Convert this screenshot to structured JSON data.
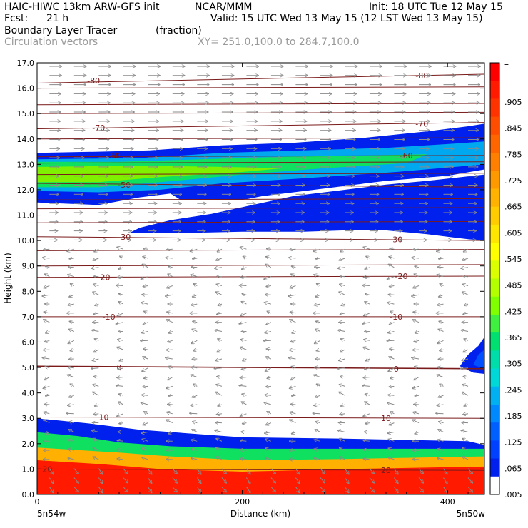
{
  "header": {
    "model": "HAIC-HIWC 13km ARW-GFS init",
    "org": "NCAR/MMM",
    "init": "Init: 18 UTC Tue 12 May 15",
    "fcst_label": "Fcst:",
    "fcst_value": "21 h",
    "valid": "Valid: 15 UTC Wed 13 May 15 (12 LST Wed 13 May 15)",
    "field": "Boundary Layer Tracer",
    "field_units": "(fraction)",
    "overlay": "Circulation vectors",
    "xy": "XY= 251.0,100.0 to 284.7,100.0"
  },
  "colorbar": {
    "top_label": "–",
    "labels": [
      ".905",
      ".845",
      ".785",
      ".725",
      ".665",
      ".605",
      ".545",
      ".485",
      ".425",
      ".365",
      ".305",
      ".245",
      ".185",
      ".125",
      ".065",
      ".005"
    ],
    "colors": [
      "#ff0000",
      "#ff1a00",
      "#ff3300",
      "#ff4d00",
      "#ff6600",
      "#ff8000",
      "#ff9900",
      "#ffb300",
      "#ffcc00",
      "#ffe600",
      "#ffff00",
      "#d9ff00",
      "#b3ff00",
      "#80ff00",
      "#40f040",
      "#00e070",
      "#00ddaa",
      "#00d8d8",
      "#00b0f0",
      "#0088ff",
      "#0060ff",
      "#0040ff",
      "#0020ee",
      "#ffffff"
    ]
  },
  "chart_data": {
    "type": "heatmap",
    "xlabel": "Distance (km)",
    "ylabel": "Height (km)",
    "xlim": [
      0,
      436
    ],
    "ylim": [
      0,
      17
    ],
    "x_ticks": [
      "0",
      "200",
      "400"
    ],
    "y_ticks": [
      "0.0",
      "1.0",
      "2.0",
      "3.0",
      "4.0",
      "5.0",
      "6.0",
      "7.0",
      "8.0",
      "9.0",
      "10.0",
      "11.0",
      "12.0",
      "13.0",
      "14.0",
      "15.0",
      "16.0",
      "17.0"
    ],
    "x_end_labels": {
      "left": "5n54w",
      "right": "5n50w"
    },
    "isotherms": [
      {
        "label": "-80",
        "y0": 16.2,
        "y1": 16.55,
        "label_at": [
          [
            55,
            16.3
          ],
          [
            375,
            16.5
          ]
        ]
      },
      {
        "label": "-70",
        "y0": 14.4,
        "y1": 14.65,
        "label_at": [
          [
            60,
            14.45
          ],
          [
            375,
            14.6
          ]
        ]
      },
      {
        "label": "-60",
        "y0": 13.3,
        "y1": 13.35,
        "label_at": [
          [
            75,
            13.35
          ],
          [
            360,
            13.35
          ]
        ]
      },
      {
        "label": "-50",
        "y0": 12.25,
        "y1": 12.1,
        "label_at": [
          [
            85,
            12.2
          ]
        ]
      },
      {
        "label": "-30",
        "y0": 10.15,
        "y1": 10.0,
        "label_at": [
          [
            85,
            10.15
          ],
          [
            350,
            10.05
          ]
        ]
      },
      {
        "label": "-20",
        "y0": 8.55,
        "y1": 8.6,
        "label_at": [
          [
            65,
            8.55
          ],
          [
            355,
            8.6
          ]
        ]
      },
      {
        "label": "-10",
        "y0": 7.0,
        "y1": 7.0,
        "label_at": [
          [
            70,
            7.0
          ],
          [
            350,
            7.0
          ]
        ]
      },
      {
        "label": "0",
        "y0": 5.05,
        "y1": 4.95,
        "label_at": [
          [
            80,
            5.0
          ],
          [
            350,
            4.95
          ]
        ]
      },
      {
        "label": "10",
        "y0": 3.05,
        "y1": 3.0,
        "label_at": [
          [
            65,
            3.05
          ],
          [
            340,
            3.0
          ]
        ]
      },
      {
        "label": "20",
        "y0": 1.0,
        "y1": 0.95,
        "label_at": [
          [
            10,
            1.0
          ],
          [
            340,
            0.95
          ]
        ]
      }
    ],
    "isotherms_unlabeled_y": [
      16.0,
      15.35,
      15.0,
      14.0,
      13.05,
      12.6,
      11.6,
      11.25,
      10.7,
      9.6,
      9.0
    ],
    "tracer_fraction": [
      {
        "level": 0.005,
        "polygon": [
          [
            0,
            0
          ],
          [
            436,
            0
          ],
          [
            436,
            1.95
          ],
          [
            420,
            2.1
          ],
          [
            300,
            2.2
          ],
          [
            200,
            2.25
          ],
          [
            150,
            2.4
          ],
          [
            100,
            2.55
          ],
          [
            50,
            2.8
          ],
          [
            0,
            3.0
          ]
        ]
      },
      {
        "level": 0.245,
        "polygon": [
          [
            0,
            0
          ],
          [
            436,
            0
          ],
          [
            436,
            1.8
          ],
          [
            300,
            1.8
          ],
          [
            200,
            1.8
          ],
          [
            130,
            1.9
          ],
          [
            80,
            2.05
          ],
          [
            40,
            2.3
          ],
          [
            0,
            2.45
          ]
        ]
      },
      {
        "level": 0.545,
        "polygon": [
          [
            0,
            0
          ],
          [
            436,
            0
          ],
          [
            436,
            1.5
          ],
          [
            300,
            1.4
          ],
          [
            200,
            1.35
          ],
          [
            130,
            1.5
          ],
          [
            80,
            1.65
          ],
          [
            0,
            1.85
          ]
        ]
      },
      {
        "level": 0.845,
        "polygon": [
          [
            0,
            0
          ],
          [
            436,
            0
          ],
          [
            436,
            1.1
          ],
          [
            300,
            1.0
          ],
          [
            200,
            0.9
          ],
          [
            120,
            1.0
          ],
          [
            60,
            1.2
          ],
          [
            0,
            1.35
          ]
        ]
      },
      {
        "level": 0.005,
        "polygon": [
          [
            0,
            13.45
          ],
          [
            60,
            13.5
          ],
          [
            110,
            13.55
          ],
          [
            180,
            13.75
          ],
          [
            250,
            13.85
          ],
          [
            320,
            14.05
          ],
          [
            380,
            14.3
          ],
          [
            420,
            14.5
          ],
          [
            436,
            14.6
          ],
          [
            436,
            10.0
          ],
          [
            420,
            10.05
          ],
          [
            380,
            10.25
          ],
          [
            340,
            10.4
          ],
          [
            300,
            10.4
          ],
          [
            260,
            10.35
          ],
          [
            200,
            10.35
          ],
          [
            150,
            10.3
          ],
          [
            90,
            10.3
          ],
          [
            100,
            10.5
          ],
          [
            130,
            10.8
          ],
          [
            170,
            11.05
          ],
          [
            210,
            11.4
          ],
          [
            250,
            11.75
          ],
          [
            290,
            11.95
          ],
          [
            340,
            12.2
          ],
          [
            380,
            12.35
          ],
          [
            436,
            12.6
          ],
          [
            436,
            12.8
          ],
          [
            400,
            12.55
          ],
          [
            340,
            12.35
          ],
          [
            300,
            12.15
          ],
          [
            260,
            11.95
          ],
          [
            220,
            11.75
          ],
          [
            200,
            11.6
          ],
          [
            140,
            11.6
          ],
          [
            130,
            11.85
          ],
          [
            100,
            11.7
          ],
          [
            60,
            11.4
          ],
          [
            0,
            11.5
          ]
        ]
      },
      {
        "level": 0.125,
        "polygon": [
          [
            0,
            13.2
          ],
          [
            100,
            13.25
          ],
          [
            180,
            13.45
          ],
          [
            260,
            13.55
          ],
          [
            340,
            13.65
          ],
          [
            400,
            13.8
          ],
          [
            436,
            13.9
          ],
          [
            436,
            13.0
          ],
          [
            350,
            12.7
          ],
          [
            260,
            12.45
          ],
          [
            180,
            12.25
          ],
          [
            120,
            12.0
          ],
          [
            60,
            11.9
          ],
          [
            0,
            11.95
          ]
        ]
      },
      {
        "level": 0.245,
        "polygon": [
          [
            0,
            13.1
          ],
          [
            80,
            13.1
          ],
          [
            160,
            13.2
          ],
          [
            240,
            13.3
          ],
          [
            320,
            13.35
          ],
          [
            380,
            13.4
          ],
          [
            360,
            13.05
          ],
          [
            280,
            12.85
          ],
          [
            200,
            12.6
          ],
          [
            120,
            12.3
          ],
          [
            60,
            12.1
          ],
          [
            0,
            12.1
          ]
        ]
      },
      {
        "level": 0.305,
        "polygon": [
          [
            0,
            12.9
          ],
          [
            100,
            12.95
          ],
          [
            180,
            12.9
          ],
          [
            240,
            12.85
          ],
          [
            200,
            12.7
          ],
          [
            120,
            12.5
          ],
          [
            60,
            12.3
          ],
          [
            0,
            12.3
          ]
        ]
      },
      {
        "level": 0.005,
        "polygon": [
          [
            436,
            4.75
          ],
          [
            425,
            4.8
          ],
          [
            412,
            5.05
          ],
          [
            420,
            5.5
          ],
          [
            430,
            5.85
          ],
          [
            436,
            6.2
          ]
        ]
      },
      {
        "level": 0.065,
        "polygon": [
          [
            436,
            4.95
          ],
          [
            425,
            5.1
          ],
          [
            430,
            5.5
          ],
          [
            436,
            5.7
          ]
        ]
      }
    ],
    "circulation_vectors": "gray arrows: strong westerly (left-to-right) flow above ~9.5 km and below ~1 km, light and variable flow in between"
  }
}
